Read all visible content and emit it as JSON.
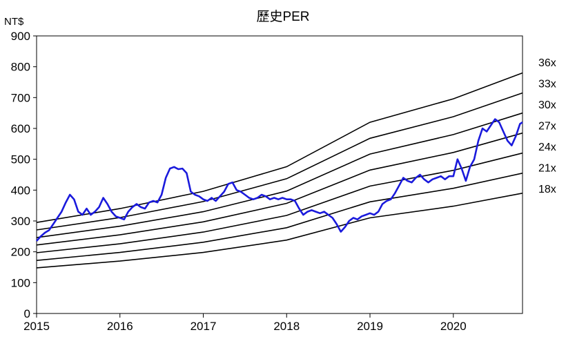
{
  "chart_data": {
    "type": "line",
    "title": "歷史PER",
    "y_unit": "NT$",
    "xlim": [
      2015.0,
      2020.83
    ],
    "ylim": [
      0,
      900
    ],
    "y_ticks": [
      0,
      100,
      200,
      300,
      400,
      500,
      600,
      700,
      800,
      900
    ],
    "x_ticks": [
      {
        "value": 2015,
        "label": "2015"
      },
      {
        "value": 2016,
        "label": "2016"
      },
      {
        "value": 2017,
        "label": "2017"
      },
      {
        "value": 2018,
        "label": "2018"
      },
      {
        "value": 2019,
        "label": "2019"
      },
      {
        "value": 2020,
        "label": "2020"
      }
    ],
    "grid": false,
    "legend": "right",
    "per_bands": [
      {
        "label": "18x",
        "points": [
          [
            2015.0,
            148
          ],
          [
            2016.0,
            170
          ],
          [
            2017.0,
            198
          ],
          [
            2018.0,
            238
          ],
          [
            2019.0,
            310
          ],
          [
            2020.0,
            348
          ],
          [
            2020.83,
            390
          ]
        ]
      },
      {
        "label": "21x",
        "points": [
          [
            2015.0,
            172
          ],
          [
            2016.0,
            198
          ],
          [
            2017.0,
            231
          ],
          [
            2018.0,
            278
          ],
          [
            2019.0,
            362
          ],
          [
            2020.0,
            406
          ],
          [
            2020.83,
            455
          ]
        ]
      },
      {
        "label": "24x",
        "points": [
          [
            2015.0,
            197
          ],
          [
            2016.0,
            226
          ],
          [
            2017.0,
            264
          ],
          [
            2018.0,
            318
          ],
          [
            2019.0,
            413
          ],
          [
            2020.0,
            464
          ],
          [
            2020.83,
            520
          ]
        ]
      },
      {
        "label": "27x",
        "points": [
          [
            2015.0,
            222
          ],
          [
            2016.0,
            255
          ],
          [
            2017.0,
            297
          ],
          [
            2018.0,
            357
          ],
          [
            2019.0,
            465
          ],
          [
            2020.0,
            522
          ],
          [
            2020.83,
            585
          ]
        ]
      },
      {
        "label": "30x",
        "points": [
          [
            2015.0,
            246
          ],
          [
            2016.0,
            283
          ],
          [
            2017.0,
            330
          ],
          [
            2018.0,
            397
          ],
          [
            2019.0,
            517
          ],
          [
            2020.0,
            580
          ],
          [
            2020.83,
            650
          ]
        ]
      },
      {
        "label": "33x",
        "points": [
          [
            2015.0,
            271
          ],
          [
            2016.0,
            311
          ],
          [
            2017.0,
            363
          ],
          [
            2018.0,
            437
          ],
          [
            2019.0,
            568
          ],
          [
            2020.0,
            638
          ],
          [
            2020.83,
            715
          ]
        ]
      },
      {
        "label": "36x",
        "points": [
          [
            2015.0,
            295
          ],
          [
            2016.0,
            340
          ],
          [
            2017.0,
            396
          ],
          [
            2018.0,
            476
          ],
          [
            2019.0,
            620
          ],
          [
            2020.0,
            696
          ],
          [
            2020.83,
            780
          ]
        ]
      }
    ],
    "price": {
      "color": "#1a1adc",
      "points": [
        [
          2015.0,
          235
        ],
        [
          2015.05,
          250
        ],
        [
          2015.1,
          262
        ],
        [
          2015.15,
          270
        ],
        [
          2015.2,
          290
        ],
        [
          2015.25,
          310
        ],
        [
          2015.3,
          330
        ],
        [
          2015.35,
          360
        ],
        [
          2015.4,
          385
        ],
        [
          2015.45,
          370
        ],
        [
          2015.5,
          330
        ],
        [
          2015.55,
          320
        ],
        [
          2015.6,
          340
        ],
        [
          2015.65,
          320
        ],
        [
          2015.7,
          330
        ],
        [
          2015.75,
          345
        ],
        [
          2015.8,
          375
        ],
        [
          2015.85,
          355
        ],
        [
          2015.9,
          330
        ],
        [
          2015.95,
          315
        ],
        [
          2016.0,
          310
        ],
        [
          2016.05,
          305
        ],
        [
          2016.1,
          330
        ],
        [
          2016.15,
          345
        ],
        [
          2016.2,
          355
        ],
        [
          2016.25,
          345
        ],
        [
          2016.3,
          340
        ],
        [
          2016.35,
          360
        ],
        [
          2016.4,
          365
        ],
        [
          2016.45,
          360
        ],
        [
          2016.5,
          385
        ],
        [
          2016.55,
          440
        ],
        [
          2016.6,
          470
        ],
        [
          2016.65,
          475
        ],
        [
          2016.7,
          468
        ],
        [
          2016.75,
          470
        ],
        [
          2016.8,
          455
        ],
        [
          2016.85,
          395
        ],
        [
          2016.9,
          385
        ],
        [
          2016.95,
          380
        ],
        [
          2017.0,
          370
        ],
        [
          2017.05,
          365
        ],
        [
          2017.1,
          375
        ],
        [
          2017.15,
          365
        ],
        [
          2017.2,
          380
        ],
        [
          2017.25,
          395
        ],
        [
          2017.3,
          420
        ],
        [
          2017.35,
          425
        ],
        [
          2017.4,
          400
        ],
        [
          2017.45,
          395
        ],
        [
          2017.5,
          385
        ],
        [
          2017.55,
          375
        ],
        [
          2017.6,
          370
        ],
        [
          2017.65,
          375
        ],
        [
          2017.7,
          385
        ],
        [
          2017.75,
          380
        ],
        [
          2017.8,
          370
        ],
        [
          2017.85,
          375
        ],
        [
          2017.9,
          370
        ],
        [
          2017.95,
          375
        ],
        [
          2018.0,
          370
        ],
        [
          2018.05,
          370
        ],
        [
          2018.1,
          365
        ],
        [
          2018.15,
          340
        ],
        [
          2018.2,
          320
        ],
        [
          2018.25,
          330
        ],
        [
          2018.3,
          335
        ],
        [
          2018.35,
          330
        ],
        [
          2018.4,
          325
        ],
        [
          2018.45,
          330
        ],
        [
          2018.5,
          320
        ],
        [
          2018.55,
          310
        ],
        [
          2018.6,
          290
        ],
        [
          2018.65,
          265
        ],
        [
          2018.7,
          280
        ],
        [
          2018.75,
          300
        ],
        [
          2018.8,
          310
        ],
        [
          2018.85,
          305
        ],
        [
          2018.9,
          315
        ],
        [
          2018.95,
          320
        ],
        [
          2019.0,
          325
        ],
        [
          2019.05,
          320
        ],
        [
          2019.1,
          330
        ],
        [
          2019.15,
          355
        ],
        [
          2019.2,
          365
        ],
        [
          2019.25,
          370
        ],
        [
          2019.3,
          390
        ],
        [
          2019.35,
          415
        ],
        [
          2019.4,
          440
        ],
        [
          2019.45,
          430
        ],
        [
          2019.5,
          425
        ],
        [
          2019.55,
          440
        ],
        [
          2019.6,
          450
        ],
        [
          2019.65,
          435
        ],
        [
          2019.7,
          425
        ],
        [
          2019.75,
          435
        ],
        [
          2019.8,
          440
        ],
        [
          2019.85,
          445
        ],
        [
          2019.9,
          435
        ],
        [
          2019.95,
          445
        ],
        [
          2020.0,
          445
        ],
        [
          2020.05,
          500
        ],
        [
          2020.1,
          470
        ],
        [
          2020.15,
          430
        ],
        [
          2020.2,
          475
        ],
        [
          2020.25,
          500
        ],
        [
          2020.3,
          560
        ],
        [
          2020.35,
          600
        ],
        [
          2020.4,
          590
        ],
        [
          2020.45,
          610
        ],
        [
          2020.5,
          630
        ],
        [
          2020.55,
          620
        ],
        [
          2020.6,
          590
        ],
        [
          2020.65,
          560
        ],
        [
          2020.7,
          545
        ],
        [
          2020.75,
          575
        ],
        [
          2020.8,
          615
        ],
        [
          2020.83,
          620
        ]
      ]
    }
  }
}
